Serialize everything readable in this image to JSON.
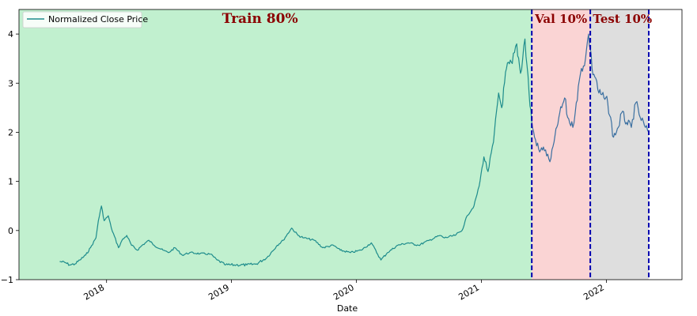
{
  "chart_data": {
    "type": "line",
    "title": "",
    "xlabel": "Date",
    "ylabel": "",
    "xlim": [
      "2017-04-20",
      "2022-08-10"
    ],
    "ylim": [
      -1,
      4.5
    ],
    "grid": false,
    "legend_placement": "top-left",
    "x_ticks": [
      {
        "date": "2018-01-01",
        "label": "2018"
      },
      {
        "date": "2019-01-01",
        "label": "2019"
      },
      {
        "date": "2020-01-01",
        "label": "2020"
      },
      {
        "date": "2021-01-01",
        "label": "2021"
      },
      {
        "date": "2022-01-01",
        "label": "2022"
      }
    ],
    "y_ticks": [
      -1,
      0,
      1,
      2,
      3,
      4
    ],
    "y_tick_labels": [
      "−1",
      "0",
      "1",
      "2",
      "3",
      "4"
    ],
    "series": [
      {
        "name": "Normalized Close Price",
        "segments": [
          {
            "color": "#1e8c8c",
            "points": [
              [
                "2017-08-17",
                -0.63
              ],
              [
                "2017-09-01",
                -0.65
              ],
              [
                "2017-09-15",
                -0.7
              ],
              [
                "2017-10-01",
                -0.68
              ],
              [
                "2017-10-15",
                -0.6
              ],
              [
                "2017-11-01",
                -0.5
              ],
              [
                "2017-11-15",
                -0.35
              ],
              [
                "2017-12-01",
                -0.15
              ],
              [
                "2017-12-08",
                0.2
              ],
              [
                "2017-12-17",
                0.5
              ],
              [
                "2017-12-25",
                0.2
              ],
              [
                "2018-01-06",
                0.3
              ],
              [
                "2018-01-15",
                0.05
              ],
              [
                "2018-02-05",
                -0.35
              ],
              [
                "2018-02-15",
                -0.2
              ],
              [
                "2018-03-01",
                -0.1
              ],
              [
                "2018-03-15",
                -0.3
              ],
              [
                "2018-04-01",
                -0.4
              ],
              [
                "2018-04-15",
                -0.3
              ],
              [
                "2018-05-05",
                -0.2
              ],
              [
                "2018-05-20",
                -0.3
              ],
              [
                "2018-06-15",
                -0.4
              ],
              [
                "2018-07-01",
                -0.45
              ],
              [
                "2018-07-20",
                -0.35
              ],
              [
                "2018-08-10",
                -0.5
              ],
              [
                "2018-09-01",
                -0.45
              ],
              [
                "2018-10-01",
                -0.47
              ],
              [
                "2018-11-01",
                -0.48
              ],
              [
                "2018-11-20",
                -0.6
              ],
              [
                "2018-12-15",
                -0.7
              ],
              [
                "2019-01-15",
                -0.7
              ],
              [
                "2019-02-15",
                -0.7
              ],
              [
                "2019-03-15",
                -0.68
              ],
              [
                "2019-04-15",
                -0.55
              ],
              [
                "2019-05-15",
                -0.3
              ],
              [
                "2019-06-01",
                -0.2
              ],
              [
                "2019-06-26",
                0.05
              ],
              [
                "2019-07-15",
                -0.1
              ],
              [
                "2019-08-01",
                -0.15
              ],
              [
                "2019-09-01",
                -0.2
              ],
              [
                "2019-09-25",
                -0.35
              ],
              [
                "2019-10-26",
                -0.3
              ],
              [
                "2019-11-15",
                -0.4
              ],
              [
                "2019-12-15",
                -0.45
              ],
              [
                "2020-01-15",
                -0.4
              ],
              [
                "2020-02-14",
                -0.25
              ],
              [
                "2020-03-13",
                -0.6
              ],
              [
                "2020-04-01",
                -0.45
              ],
              [
                "2020-05-01",
                -0.3
              ],
              [
                "2020-06-01",
                -0.25
              ],
              [
                "2020-07-01",
                -0.3
              ],
              [
                "2020-08-01",
                -0.2
              ],
              [
                "2020-09-01",
                -0.1
              ],
              [
                "2020-09-15",
                -0.15
              ],
              [
                "2020-10-15",
                -0.1
              ],
              [
                "2020-11-05",
                0.0
              ],
              [
                "2020-11-20",
                0.3
              ],
              [
                "2020-12-10",
                0.5
              ],
              [
                "2020-12-25",
                0.9
              ],
              [
                "2021-01-08",
                1.5
              ],
              [
                "2021-01-20",
                1.2
              ],
              [
                "2021-02-05",
                1.8
              ],
              [
                "2021-02-20",
                2.8
              ],
              [
                "2021-03-01",
                2.5
              ],
              [
                "2021-03-15",
                3.3
              ],
              [
                "2021-04-01",
                3.4
              ],
              [
                "2021-04-14",
                3.8
              ],
              [
                "2021-04-25",
                3.2
              ],
              [
                "2021-05-08",
                3.9
              ],
              [
                "2021-05-20",
                2.8
              ],
              [
                "2021-05-28",
                2.2
              ]
            ]
          },
          {
            "color": "#3a6fa0",
            "points": [
              [
                "2021-05-28",
                2.2
              ],
              [
                "2021-06-05",
                1.9
              ],
              [
                "2021-06-20",
                1.6
              ],
              [
                "2021-07-01",
                1.7
              ],
              [
                "2021-07-20",
                1.4
              ],
              [
                "2021-08-01",
                1.8
              ],
              [
                "2021-08-15",
                2.3
              ],
              [
                "2021-09-01",
                2.7
              ],
              [
                "2021-09-10",
                2.3
              ],
              [
                "2021-09-25",
                2.1
              ],
              [
                "2021-10-05",
                2.6
              ],
              [
                "2021-10-20",
                3.3
              ],
              [
                "2021-11-01",
                3.5
              ],
              [
                "2021-11-10",
                4.0
              ],
              [
                "2021-11-15",
                3.7
              ],
              [
                "2021-11-20",
                3.3
              ],
              [
                "2021-12-01",
                3.1
              ],
              [
                "2021-12-10",
                2.8
              ],
              [
                "2021-12-25",
                2.7
              ],
              [
                "2022-01-05",
                2.6
              ],
              [
                "2022-01-22",
                1.9
              ],
              [
                "2022-02-05",
                2.1
              ],
              [
                "2022-02-15",
                2.4
              ],
              [
                "2022-03-01",
                2.2
              ],
              [
                "2022-03-15",
                2.1
              ],
              [
                "2022-03-28",
                2.6
              ],
              [
                "2022-04-10",
                2.3
              ],
              [
                "2022-04-25",
                2.1
              ],
              [
                "2022-05-05",
                2.0
              ]
            ]
          }
        ]
      }
    ],
    "regions": [
      {
        "label": "Train 80%",
        "start": "2017-04-20",
        "end": "2021-05-28",
        "color": "#c1f0cf"
      },
      {
        "label": "Val 10%",
        "start": "2021-05-28",
        "end": "2021-11-15",
        "color": "#fad4d4"
      },
      {
        "label": "Test 10%",
        "start": "2021-11-15",
        "end": "2022-05-05",
        "color": "#dedede"
      }
    ],
    "split_lines": [
      "2021-05-28",
      "2021-11-15",
      "2022-05-05"
    ],
    "split_line_color": "#0000b0"
  }
}
